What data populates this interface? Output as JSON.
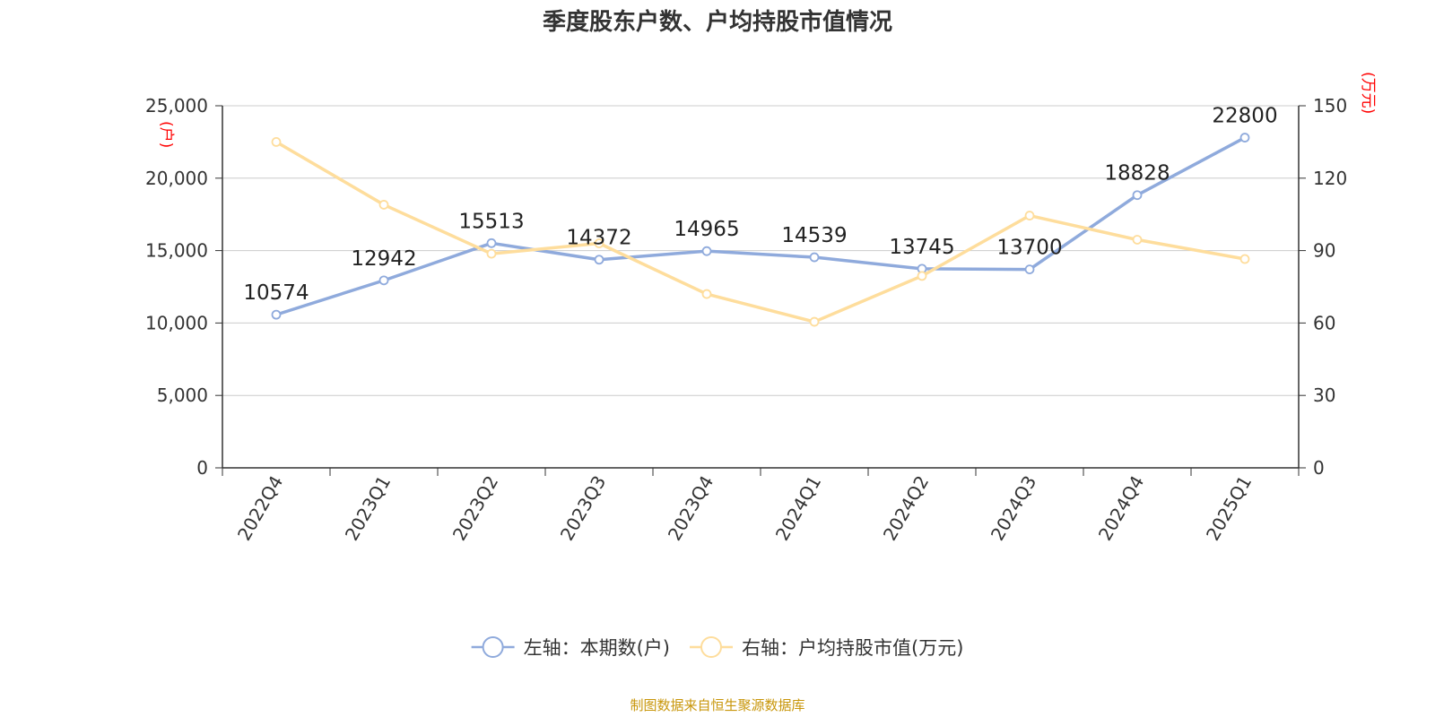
{
  "title": "季度股东户数、户均持股市值情况",
  "source": "制图数据来自恒生聚源数据库",
  "colors": {
    "left_series": "#8faadc",
    "right_series": "#fedd9c",
    "unit_label": "#ff0000",
    "source": "#c8960a",
    "axis": "#333333",
    "grid": "#cccccc"
  },
  "chart_data": {
    "type": "line",
    "title": "季度股东户数、户均持股市值情况",
    "categories": [
      "2022Q4",
      "2023Q1",
      "2023Q2",
      "2023Q3",
      "2023Q4",
      "2024Q1",
      "2024Q2",
      "2024Q3",
      "2024Q4",
      "2025Q1"
    ],
    "y_left": {
      "unit": "(户)",
      "ylim": [
        0,
        25000
      ],
      "ticks": [
        0,
        5000,
        10000,
        15000,
        20000,
        25000
      ],
      "tick_labels": [
        "0",
        "5,000",
        "10,000",
        "15,000",
        "20,000",
        "25,000"
      ]
    },
    "y_right": {
      "unit": "(万元)",
      "ylim": [
        0,
        150
      ],
      "ticks": [
        0,
        30,
        60,
        90,
        120,
        150
      ],
      "tick_labels": [
        "0",
        "30",
        "60",
        "90",
        "120",
        "150"
      ]
    },
    "grid": true,
    "legend_position": "bottom",
    "series": [
      {
        "name": "左轴：本期数(户)",
        "axis": "left",
        "values": [
          10574,
          12942,
          15513,
          14372,
          14965,
          14539,
          13745,
          13700,
          18828,
          22800
        ],
        "data_labels": [
          "10574",
          "12942",
          "15513",
          "14372",
          "14965",
          "14539",
          "13745",
          "13700",
          "18828",
          "22800"
        ]
      },
      {
        "name": "右轴：户均持股市值(万元)",
        "axis": "right",
        "values": [
          135,
          109,
          88.7,
          93,
          72,
          60.5,
          79.5,
          104.5,
          94.5,
          86.5
        ]
      }
    ]
  }
}
